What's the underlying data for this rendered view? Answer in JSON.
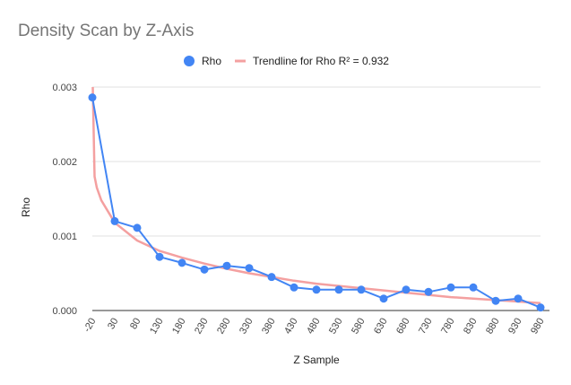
{
  "chart_data": {
    "type": "line",
    "title": "Density Scan by Z-Axis",
    "xlabel": "Z Sample",
    "ylabel": "Rho",
    "x": [
      -20,
      30,
      80,
      130,
      180,
      230,
      280,
      330,
      380,
      430,
      480,
      530,
      580,
      630,
      680,
      730,
      780,
      830,
      880,
      930,
      980
    ],
    "x_tick_labels": [
      "-20",
      "30",
      "80",
      "130",
      "180",
      "230",
      "280",
      "330",
      "380",
      "430",
      "480",
      "530",
      "580",
      "630",
      "680",
      "730",
      "780",
      "830",
      "880",
      "930",
      "980"
    ],
    "y_ticks": [
      0,
      0.001,
      0.002,
      0.003
    ],
    "y_tick_labels": [
      "0.000",
      "0.001",
      "0.002",
      "0.003"
    ],
    "ylim": [
      0,
      0.003
    ],
    "xlim": [
      -20,
      980
    ],
    "grid": true,
    "legend_position": "top",
    "series": [
      {
        "name": "Rho",
        "color": "#4285f4",
        "values": [
          0.00286,
          0.0012,
          0.00111,
          0.00072,
          0.00064,
          0.00055,
          0.0006,
          0.00057,
          0.00045,
          0.00031,
          0.00028,
          0.00028,
          0.00028,
          0.00016,
          0.00028,
          0.00025,
          0.00031,
          0.00031,
          0.00013,
          0.00016,
          4e-05
        ]
      }
    ],
    "trendline": {
      "name": "Trendline for Rho R² = 0.932",
      "color": "#f4a0a0",
      "type": "power",
      "points": [
        [
          -19,
          0.003
        ],
        [
          -15,
          0.0018
        ],
        [
          -10,
          0.00165
        ],
        [
          0,
          0.00148
        ],
        [
          30,
          0.00118
        ],
        [
          80,
          0.00094
        ],
        [
          130,
          0.0008
        ],
        [
          180,
          0.00071
        ],
        [
          230,
          0.00063
        ],
        [
          280,
          0.00056
        ],
        [
          330,
          0.0005
        ],
        [
          380,
          0.00045
        ],
        [
          430,
          0.0004
        ],
        [
          480,
          0.00036
        ],
        [
          530,
          0.00033
        ],
        [
          580,
          0.0003
        ],
        [
          630,
          0.00027
        ],
        [
          680,
          0.00024
        ],
        [
          730,
          0.00021
        ],
        [
          780,
          0.00018
        ],
        [
          830,
          0.00016
        ],
        [
          880,
          0.00014
        ],
        [
          930,
          0.00012
        ],
        [
          980,
          0.0001
        ]
      ]
    }
  }
}
